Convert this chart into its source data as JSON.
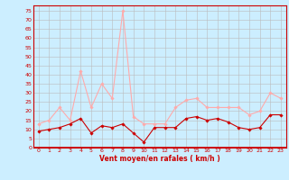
{
  "hours": [
    0,
    1,
    2,
    3,
    4,
    5,
    6,
    7,
    8,
    9,
    10,
    11,
    12,
    13,
    14,
    15,
    16,
    17,
    18,
    19,
    20,
    21,
    22,
    23
  ],
  "wind_avg": [
    9,
    10,
    11,
    13,
    16,
    8,
    12,
    11,
    13,
    8,
    3,
    11,
    11,
    11,
    16,
    17,
    15,
    16,
    14,
    11,
    10,
    11,
    18,
    18
  ],
  "wind_gust": [
    13,
    15,
    22,
    15,
    42,
    22,
    35,
    27,
    75,
    17,
    13,
    13,
    13,
    22,
    26,
    27,
    22,
    22,
    22,
    22,
    18,
    20,
    30,
    27
  ],
  "bg_color": "#cceeff",
  "grid_color": "#bbbbbb",
  "line_avg_color": "#cc0000",
  "line_gust_color": "#ffaaaa",
  "axis_color": "#cc0000",
  "xlabel": "Vent moyen/en rafales ( km/h )",
  "yticks": [
    0,
    5,
    10,
    15,
    20,
    25,
    30,
    35,
    40,
    45,
    50,
    55,
    60,
    65,
    70,
    75
  ],
  "ylim": [
    0,
    78
  ],
  "xlim": [
    -0.5,
    23.5
  ],
  "xlabel_fontsize": 5.5,
  "tick_fontsize": 4.5
}
